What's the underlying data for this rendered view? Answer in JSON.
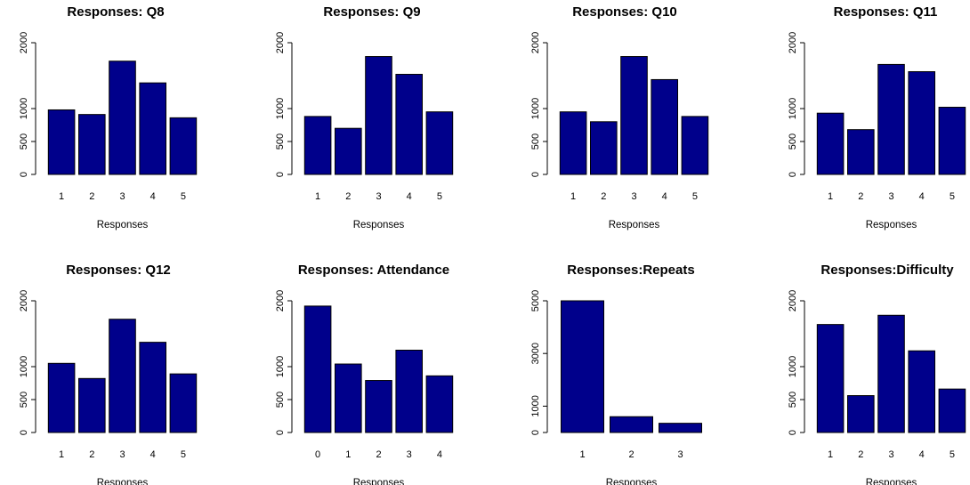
{
  "colors": {
    "bar_fill": "#00008B",
    "bar_stroke": "#000000",
    "axis": "#000000"
  },
  "chart_data": [
    {
      "type": "bar",
      "title": "Responses: Q8",
      "xlabel": "Responses",
      "ylabel": "",
      "categories": [
        "1",
        "2",
        "3",
        "4",
        "5"
      ],
      "values": [
        980,
        910,
        1720,
        1390,
        860
      ],
      "ylim": [
        0,
        2000
      ],
      "yticks": [
        0,
        500,
        1000,
        2000
      ],
      "grid": false
    },
    {
      "type": "bar",
      "title": "Responses: Q9",
      "xlabel": "Responses",
      "ylabel": "",
      "categories": [
        "1",
        "2",
        "3",
        "4",
        "5"
      ],
      "values": [
        880,
        700,
        1790,
        1520,
        950
      ],
      "ylim": [
        0,
        2000
      ],
      "yticks": [
        0,
        500,
        1000,
        2000
      ],
      "grid": false
    },
    {
      "type": "bar",
      "title": "Responses: Q10",
      "xlabel": "Responses",
      "ylabel": "",
      "categories": [
        "1",
        "2",
        "3",
        "4",
        "5"
      ],
      "values": [
        950,
        800,
        1790,
        1440,
        880
      ],
      "ylim": [
        0,
        2000
      ],
      "yticks": [
        0,
        500,
        1000,
        2000
      ],
      "grid": false
    },
    {
      "type": "bar",
      "title": "Responses: Q11",
      "xlabel": "Responses",
      "ylabel": "",
      "categories": [
        "1",
        "2",
        "3",
        "4",
        "5"
      ],
      "values": [
        930,
        680,
        1670,
        1560,
        1020
      ],
      "ylim": [
        0,
        2000
      ],
      "yticks": [
        0,
        500,
        1000,
        2000
      ],
      "grid": false
    },
    {
      "type": "bar",
      "title": "Responses: Q12",
      "xlabel": "Responses",
      "ylabel": "",
      "categories": [
        "1",
        "2",
        "3",
        "4",
        "5"
      ],
      "values": [
        1050,
        820,
        1720,
        1370,
        890
      ],
      "ylim": [
        0,
        2000
      ],
      "yticks": [
        0,
        500,
        1000,
        2000
      ],
      "grid": false
    },
    {
      "type": "bar",
      "title": "Responses: Attendance",
      "xlabel": "Responses",
      "ylabel": "",
      "categories": [
        "0",
        "1",
        "2",
        "3",
        "4"
      ],
      "values": [
        1920,
        1040,
        790,
        1250,
        860
      ],
      "ylim": [
        0,
        2000
      ],
      "yticks": [
        0,
        500,
        1000,
        2000
      ],
      "grid": false
    },
    {
      "type": "bar",
      "title": "Responses:Repeats",
      "xlabel": "Responses",
      "ylabel": "",
      "categories": [
        "1",
        "2",
        "3"
      ],
      "values": [
        5000,
        600,
        350
      ],
      "ylim": [
        0,
        5000
      ],
      "yticks": [
        0,
        1000,
        3000,
        5000
      ],
      "grid": false
    },
    {
      "type": "bar",
      "title": "Responses:Difficulty",
      "xlabel": "Responses",
      "ylabel": "",
      "categories": [
        "1",
        "2",
        "3",
        "4",
        "5"
      ],
      "values": [
        1640,
        560,
        1780,
        1240,
        660
      ],
      "ylim": [
        0,
        2000
      ],
      "yticks": [
        0,
        500,
        1000,
        2000
      ],
      "grid": false
    }
  ]
}
